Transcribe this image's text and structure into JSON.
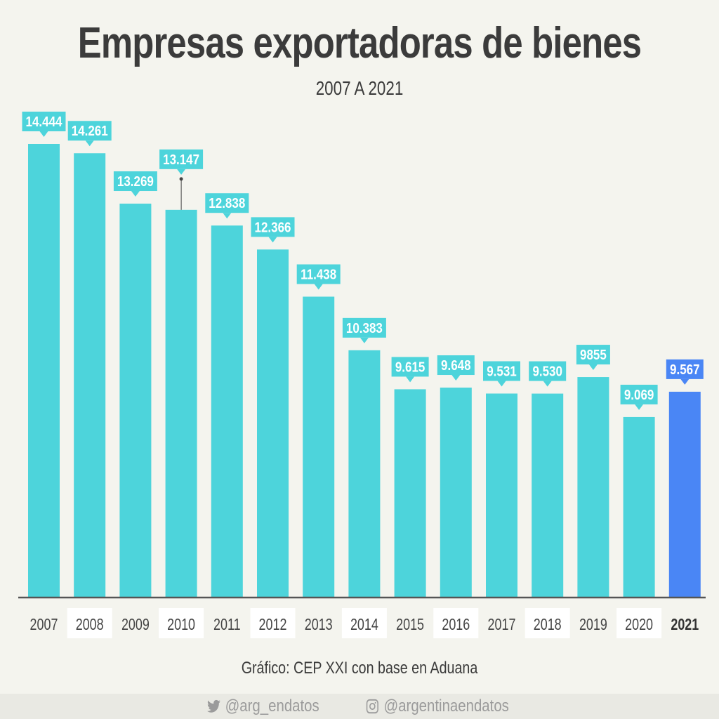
{
  "header": {
    "title": "Empresas exportadoras de bienes",
    "subtitle": "2007 A 2021"
  },
  "chart_data": {
    "type": "bar",
    "title": "Empresas exportadoras de bienes",
    "subtitle": "2007 A 2021",
    "xlabel": "",
    "ylabel": "",
    "ylim": [
      5530,
      14444
    ],
    "grid": false,
    "categories": [
      "2007",
      "2008",
      "2009",
      "2010",
      "2011",
      "2012",
      "2013",
      "2014",
      "2015",
      "2016",
      "2017",
      "2018",
      "2019",
      "2020",
      "2021"
    ],
    "values": [
      14444,
      14261,
      13269,
      13147,
      12838,
      12366,
      11438,
      10383,
      9615,
      9648,
      9531,
      9530,
      9855,
      9069,
      9567
    ],
    "labels": [
      "14.444",
      "14.261",
      "13.269",
      "13.147",
      "12.838",
      "12.366",
      "11.438",
      "10.383",
      "9.615",
      "9.648",
      "9.531",
      "9.530",
      "9855",
      "9.069",
      "9.567"
    ],
    "highlight_category": "2021",
    "colors": {
      "bar": "#4dd4db",
      "highlight": "#4a86f5",
      "axis": "#555555",
      "tick_bg": "#ffffff"
    }
  },
  "footer": {
    "source": "Gráfico: CEP XXI con base en Aduana",
    "twitter_icon": "twitter-bird-icon",
    "twitter": "@arg_endatos",
    "instagram_icon": "instagram-icon",
    "instagram": "@argentinaendatos"
  }
}
